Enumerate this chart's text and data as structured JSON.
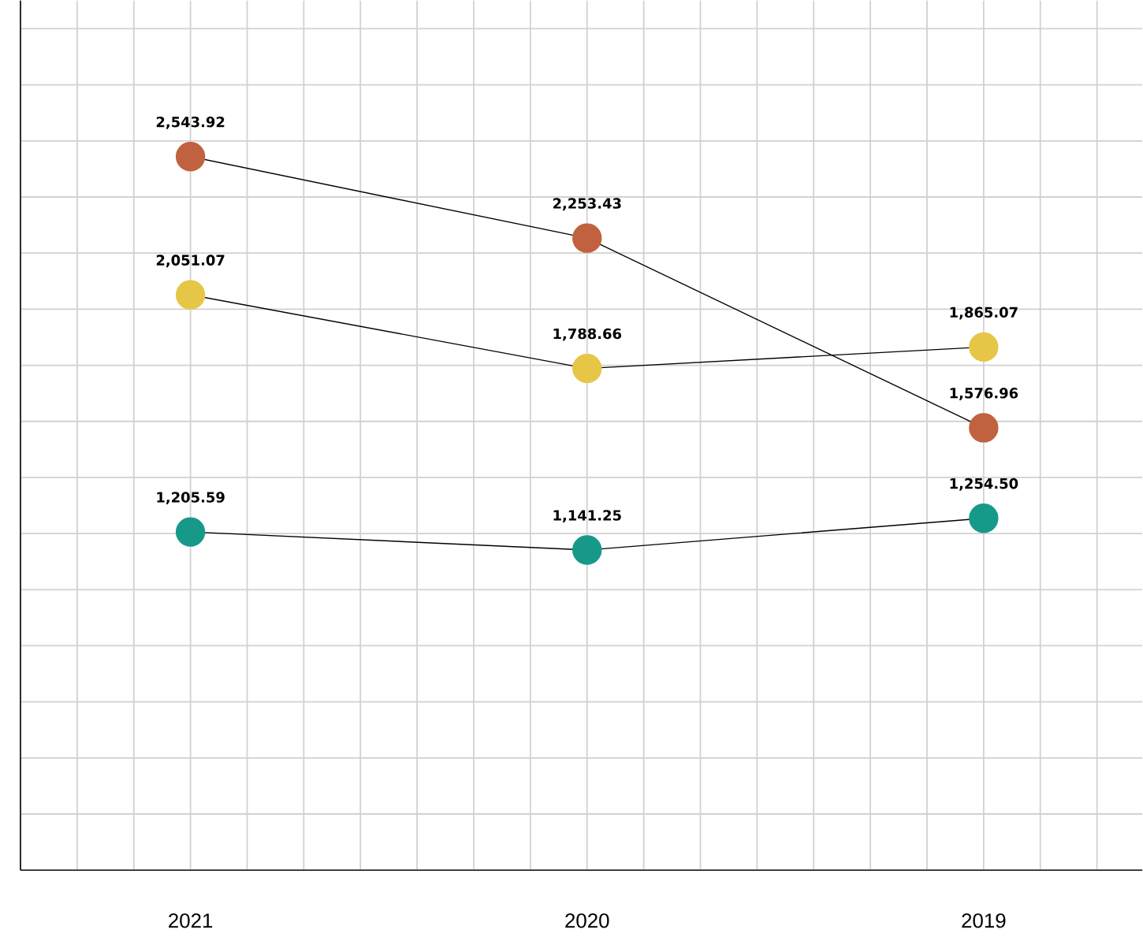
{
  "chart_data": {
    "type": "line",
    "categories": [
      "2021",
      "2020",
      "2019"
    ],
    "series": [
      {
        "color": "#c0623f",
        "values": [
          2543.92,
          2253.43,
          1576.96
        ],
        "value_labels": [
          "2,543.92",
          "2,253.43",
          "1,576.96"
        ]
      },
      {
        "color": "#e6c646",
        "values": [
          2051.07,
          1788.66,
          1865.07
        ],
        "value_labels": [
          "2,051.07",
          "1,788.66",
          "1,865.07"
        ]
      },
      {
        "color": "#17998a",
        "values": [
          1205.59,
          1141.25,
          1254.5
        ],
        "value_labels": [
          "1,205.59",
          "1,141.25",
          "1,254.50"
        ]
      }
    ],
    "ylim": [
      0,
      3100
    ],
    "yticks": [
      {
        "value": 0,
        "label": null
      },
      {
        "value": 200,
        "label": null
      },
      {
        "value": 400,
        "label": null
      },
      {
        "value": 600,
        "label": null
      },
      {
        "value": 800,
        "label": null
      },
      {
        "value": 1000,
        "label": null
      },
      {
        "value": 1200,
        "label": null
      },
      {
        "value": 1400,
        "label": null
      },
      {
        "value": 1600,
        "label": null
      },
      {
        "value": 1800,
        "label": null
      },
      {
        "value": 2000,
        "label": null
      },
      {
        "value": 2200,
        "label": null
      },
      {
        "value": 2400,
        "label": null
      },
      {
        "value": 2600,
        "label": null
      },
      {
        "value": 2800,
        "label": null
      },
      {
        "value": 3000,
        "label": null
      }
    ],
    "grid": true,
    "tick_labels": "x",
    "marker": "circle",
    "line_style": "solid"
  }
}
